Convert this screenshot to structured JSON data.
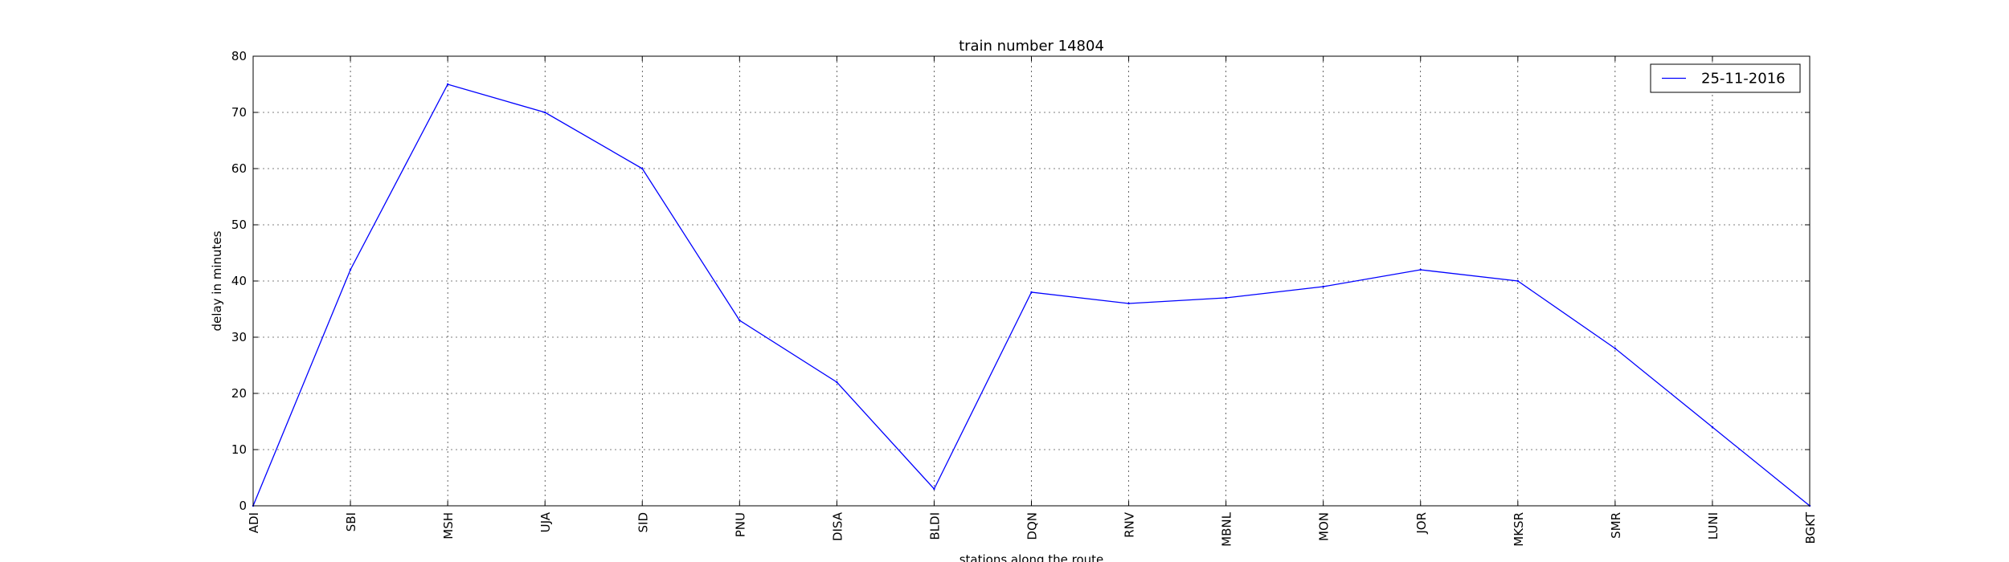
{
  "chart_data": {
    "type": "line",
    "title": "train number 14804",
    "xlabel": "stations along the route",
    "ylabel": "delay in minutes",
    "categories": [
      "ADI",
      "SBI",
      "MSH",
      "UJA",
      "SID",
      "PNU",
      "DISA",
      "BLDI",
      "DQN",
      "RNV",
      "MBNL",
      "MON",
      "JOR",
      "MKSR",
      "SMR",
      "LUNI",
      "BGKT"
    ],
    "series": [
      {
        "name": "25-11-2016",
        "values": [
          0,
          42,
          75,
          70,
          60,
          33,
          22,
          3,
          38,
          36,
          37,
          39,
          42,
          40,
          28,
          14,
          0
        ],
        "color": "#0000ff"
      }
    ],
    "ylim": [
      0,
      80
    ],
    "yticks": [
      0,
      10,
      20,
      30,
      40,
      50,
      60,
      70,
      80
    ],
    "grid": true,
    "legend": "top-right"
  }
}
